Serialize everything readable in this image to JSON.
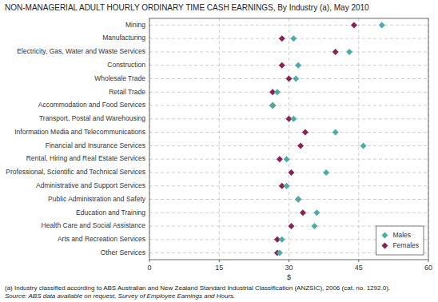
{
  "chart_data": {
    "type": "dot",
    "title": "NON-MANAGERIAL ADULT HOURLY ORDINARY TIME CASH EARNINGS, By Industry (a), May 2010",
    "xlabel": "$",
    "annotations": [
      "(a) Industry classified according to ABS Australian and New Zealand Standard Industrial Classification (ANZSIC), 2006 (cat. no. 1292.0).",
      "Source: ABS data available on request, Survey of Employee Earnings and Hours."
    ],
    "orientation": "horizontal",
    "categories": [
      "Mining",
      "Manufacturing",
      "Electricity, Gas, Water and Waste Services",
      "Construction",
      "Wholesale Trade",
      "Retail Trade",
      "Accommodation and Food Services",
      "Transport, Postal and Warehousing",
      "Information Media and Telecommunications",
      "Financial and Insurance Services",
      "Rental, Hiring and Real Estate Services",
      "Professional, Scientific and Technical Services",
      "Administrative and Support Services",
      "Public Administration and Safety",
      "Education and Training",
      "Health Care and Social Assistance",
      "Arts and Recreation Services",
      "Other Services"
    ],
    "series": [
      {
        "name": "Males",
        "color": "#4AADA8",
        "marker": "diamond",
        "values": [
          50.0,
          31.0,
          43.0,
          32.0,
          31.5,
          27.5,
          26.5,
          31.0,
          40.0,
          46.0,
          29.5,
          38.0,
          29.5,
          32.0,
          36.0,
          35.5,
          28.5,
          28.0
        ]
      },
      {
        "name": "Females",
        "color": "#8B2252",
        "marker": "diamond",
        "values": [
          44.0,
          28.5,
          40.0,
          28.5,
          30.0,
          26.5,
          26.5,
          30.0,
          33.5,
          32.5,
          28.0,
          30.5,
          28.5,
          32.0,
          33.0,
          30.5,
          27.5,
          27.5
        ]
      }
    ],
    "xlim": [
      0,
      60
    ],
    "xticks": [
      0,
      15,
      30,
      45,
      60
    ],
    "grid": true,
    "legend": "lower right"
  }
}
